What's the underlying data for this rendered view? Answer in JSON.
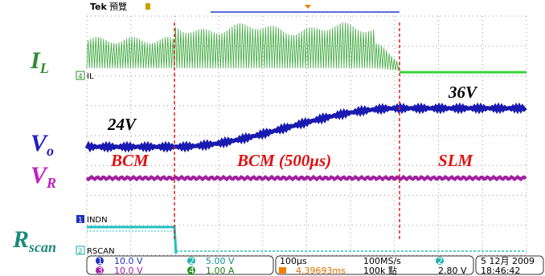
{
  "header": {
    "brand": "Tek",
    "mode": "預覽"
  },
  "signal_labels": {
    "il": {
      "main": "I",
      "sub": "L"
    },
    "vo": {
      "main": "V",
      "sub": "o"
    },
    "vr": {
      "main": "V",
      "sub": "R"
    },
    "rscan": {
      "main": "R",
      "sub": "scan"
    }
  },
  "annotations": {
    "v_high": "36V",
    "v_low": "24V",
    "mode_1": "BCM",
    "mode_2": "BCM (500μs)",
    "mode_3": "SLM"
  },
  "channels": [
    {
      "number": "4",
      "name": "IL"
    },
    {
      "number": "1",
      "name": "INDN"
    },
    {
      "number": "2",
      "name": "RSCAN"
    }
  ],
  "readout": {
    "ch1": {
      "number": "1",
      "scale": "10.0 V"
    },
    "ch2": {
      "number": "2",
      "scale": "5.00 V"
    },
    "ch3": {
      "number": "3",
      "scale": "10.0 V"
    },
    "ch4": {
      "number": "4",
      "scale": "1.00 A"
    },
    "timebase": "100μs",
    "sample_rate": "100MS/s",
    "trigger_position": "4.39693ms",
    "record_length": "100k 點",
    "trigger_source": "2",
    "trigger_level": "2.80 V",
    "date": "5 12月 2009",
    "time": "18:46:42"
  }
}
